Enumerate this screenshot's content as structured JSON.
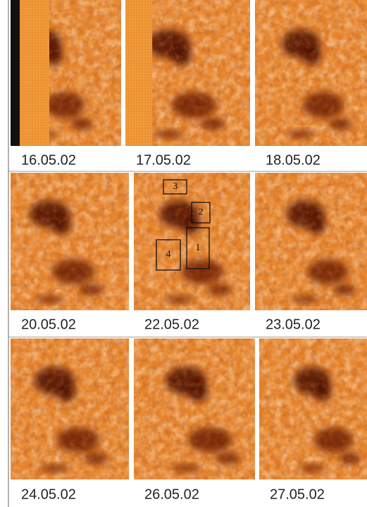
{
  "rows": [
    [
      "16.05.02",
      "17.05.02",
      "18.05.02"
    ],
    [
      "20.05.02",
      "22.05.02",
      "23.05.02"
    ],
    [
      "24.05.02",
      "26.05.02",
      "27.05.02"
    ]
  ],
  "regions": [
    "3",
    "2",
    "1",
    "4"
  ]
}
